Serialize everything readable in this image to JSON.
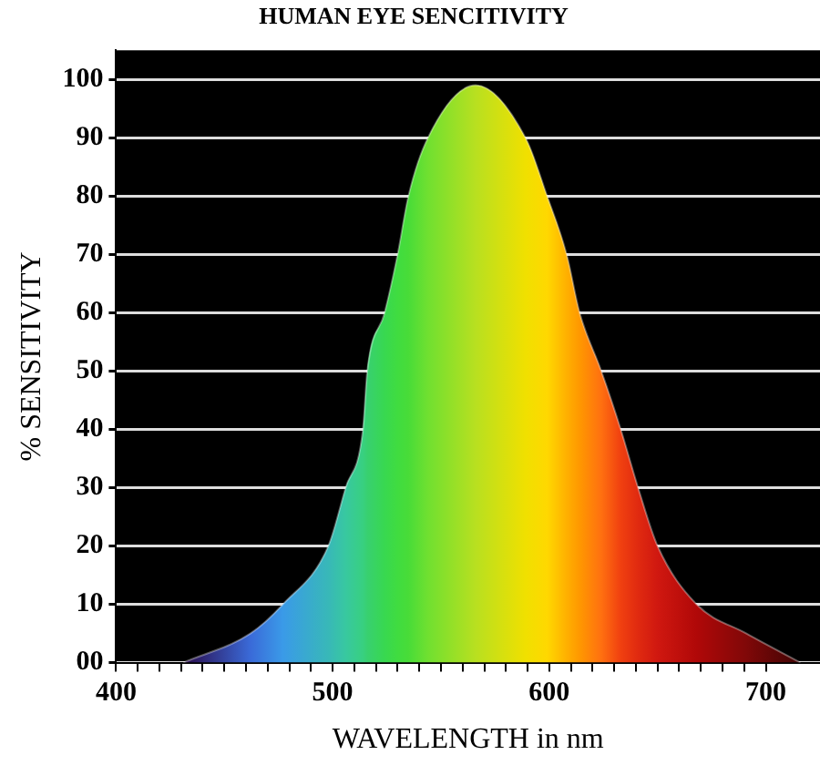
{
  "chart_data": {
    "type": "area",
    "title": "HUMAN EYE SENCITIVITY",
    "xlabel": "WAVELENGTH in nm",
    "ylabel": "% SENSITIVITY",
    "x": [
      431,
      462,
      477,
      498,
      506,
      514,
      516,
      524,
      530,
      535,
      544,
      566,
      589,
      599,
      608,
      614,
      624,
      633,
      641,
      650,
      668,
      691,
      716
    ],
    "series": [
      {
        "values": [
          0,
          5,
          10,
          20,
          30,
          40,
          50,
          60,
          70,
          80,
          90,
          99,
          90,
          80,
          70,
          60,
          50,
          40,
          30,
          20,
          10,
          5,
          0
        ],
        "colors": [
          "#2a0a4a",
          "#3a6ad8",
          "#3a9ae8",
          "#38b8b8",
          "#38c8a0",
          "#38d080",
          "#38d070",
          "#38d850",
          "#40dc40",
          "#48dc38",
          "#70e030",
          "#b8e020",
          "#f0e000",
          "#ffd800",
          "#ffb000",
          "#ff9800",
          "#ff7010",
          "#f04010",
          "#e02a10",
          "#d01810",
          "#b00808",
          "#800808",
          "#400404"
        ]
      }
    ],
    "xlim": [
      400,
      725
    ],
    "ylim": [
      0,
      105
    ],
    "xticks": [
      400,
      {
        "value": 410,
        "label": null
      },
      {
        "value": 420,
        "label": null
      },
      {
        "value": 430,
        "label": null
      },
      {
        "value": 440,
        "label": null
      },
      {
        "value": 450,
        "label": null
      },
      {
        "value": 460,
        "label": null
      },
      {
        "value": 470,
        "label": null
      },
      {
        "value": 480,
        "label": null
      },
      {
        "value": 490,
        "label": null
      },
      500,
      {
        "value": 510,
        "label": null
      },
      {
        "value": 520,
        "label": null
      },
      {
        "value": 530,
        "label": null
      },
      {
        "value": 540,
        "label": null
      },
      {
        "value": 550,
        "label": null
      },
      {
        "value": 560,
        "label": null
      },
      {
        "value": 570,
        "label": null
      },
      {
        "value": 580,
        "label": null
      },
      {
        "value": 590,
        "label": null
      },
      600,
      {
        "value": 610,
        "label": null
      },
      {
        "value": 620,
        "label": null
      },
      {
        "value": 630,
        "label": null
      },
      {
        "value": 640,
        "label": null
      },
      {
        "value": 650,
        "label": null
      },
      {
        "value": 660,
        "label": null
      },
      {
        "value": 670,
        "label": null
      },
      {
        "value": 680,
        "label": null
      },
      {
        "value": 690,
        "label": null
      },
      700
    ],
    "yticks": [
      {
        "value": 0,
        "label": "00"
      },
      10,
      20,
      30,
      40,
      50,
      60,
      70,
      80,
      90,
      100
    ],
    "grid": "y"
  }
}
